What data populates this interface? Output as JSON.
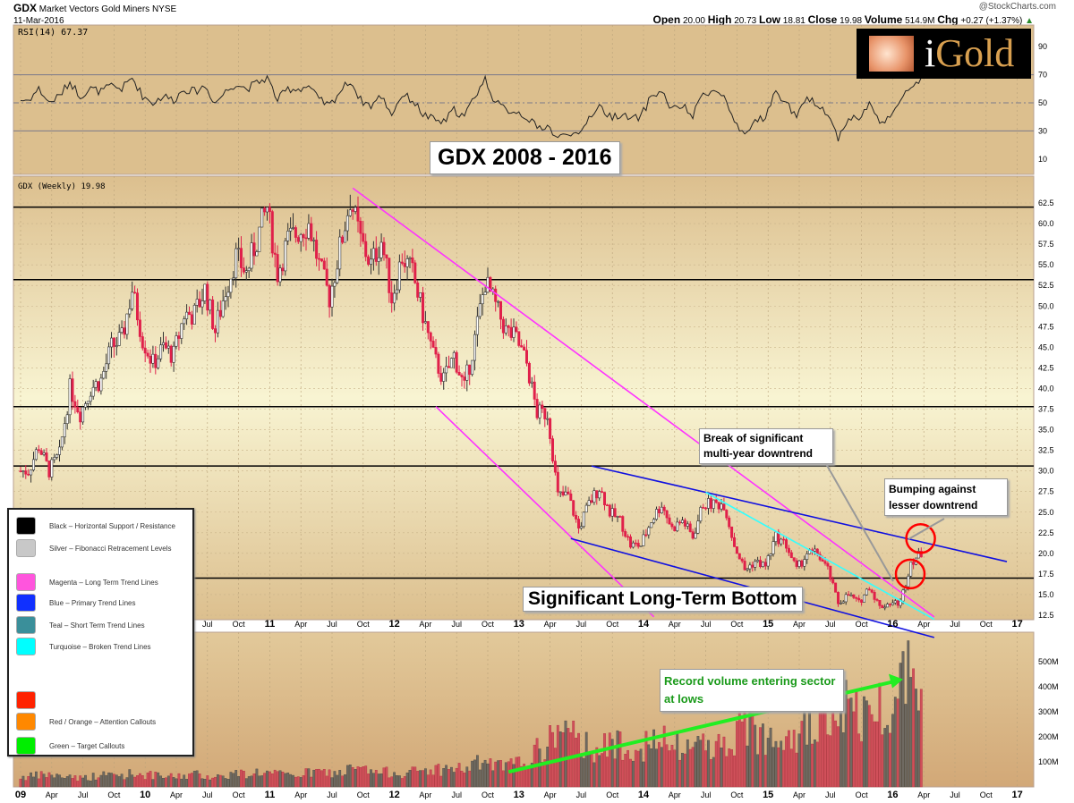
{
  "header": {
    "symbol": "GDX",
    "name": "Market Vectors Gold Miners",
    "exchange": "NYSE",
    "date": "11-Mar-2016",
    "copyright": "@StockCharts.com",
    "open_label": "Open",
    "open": "20.00",
    "high_label": "High",
    "high": "20.73",
    "low_label": "Low",
    "low": "18.81",
    "close_label": "Close",
    "close": "19.98",
    "volume_label": "Volume",
    "volume": "514.9M",
    "chg_label": "Chg",
    "chg": "+0.27 (+1.37%)"
  },
  "logo": {
    "text_i": "i",
    "text_gold": "Gold"
  },
  "rsi_label": "RSI(14) 67.37",
  "price_label": "GDX (Weekly) 19.98",
  "title_box": "GDX 2008 - 2016",
  "colors": {
    "up": "#333333",
    "down": "#e0204a",
    "magenta": "#ff33ff",
    "blue": "#1010e0",
    "turquoise": "#33ffff",
    "callout_red": "#ff0000",
    "arrow_green": "#22ee22"
  },
  "legend": [
    {
      "color": "#000000",
      "label": "Black – Horizontal Support / Resistance"
    },
    {
      "color": "#c8c8c8",
      "label": "Silver – Fibonacci Retracement Levels"
    },
    {
      "color": "#ff55dd",
      "label": "Magenta – Long Term Trend Lines"
    },
    {
      "color": "#1030ff",
      "label": "Blue – Primary Trend Lines"
    },
    {
      "color": "#3a8f9a",
      "label": "Teal – Short Term Trend Lines"
    },
    {
      "color": "#00ffff",
      "label": "Turquoise – Broken Trend Lines"
    },
    {
      "color": "#ff2200",
      "label": ""
    },
    {
      "color": "#ff8800",
      "label": "Red / Orange – Attention Callouts"
    },
    {
      "color": "#00ee00",
      "label": "Green – Target Callouts"
    }
  ],
  "annotations": {
    "break": "Break of significant multi-year downtrend",
    "bumping": "Bumping against lesser downtrend",
    "bottom": "Significant Long-Term Bottom",
    "volume": "Record volume entering sector at lows"
  },
  "chart_data": {
    "type": "candlestick",
    "scale": "linear",
    "grid": true,
    "x_ticks": [
      "09",
      "Apr",
      "Jul",
      "Oct",
      "10",
      "Apr",
      "Jul",
      "Oct",
      "11",
      "Apr",
      "Jul",
      "Oct",
      "12",
      "Apr",
      "Jul",
      "Oct",
      "13",
      "Apr",
      "Jul",
      "Oct",
      "14",
      "Apr",
      "Jul",
      "Oct",
      "15",
      "Apr",
      "Jul",
      "Oct",
      "16",
      "Apr",
      "Jul",
      "Oct",
      "17"
    ],
    "x_range": [
      "2009-01",
      "2017-03"
    ],
    "price_ylim": [
      11,
      65
    ],
    "price_ticks": [
      "12.5",
      "15.0",
      "17.5",
      "20.0",
      "22.5",
      "25.0",
      "27.5",
      "30.0",
      "32.5",
      "35.0",
      "37.5",
      "40.0",
      "42.5",
      "45.0",
      "47.5",
      "50.0",
      "52.5",
      "55.0",
      "57.5",
      "60.0",
      "62.5"
    ],
    "rsi_ticks": [
      "10",
      "30",
      "50",
      "70",
      "90"
    ],
    "volume_ticks": [
      "100M",
      "200M",
      "300M",
      "400M",
      "500M"
    ],
    "start": "2009-01",
    "close": [
      30,
      33,
      30,
      32,
      40,
      37,
      40,
      41,
      45,
      46,
      52,
      46,
      43,
      45,
      44,
      49,
      49,
      52,
      47,
      52,
      56,
      54,
      58,
      62,
      54,
      58,
      59,
      60,
      55,
      51,
      57,
      63,
      58,
      55,
      58,
      51,
      56,
      54,
      49,
      44,
      41,
      44,
      40,
      46,
      53,
      50,
      47,
      46,
      43,
      37,
      37,
      27,
      27,
      23,
      26,
      28,
      25,
      24,
      21,
      21,
      24,
      26,
      23,
      24,
      22,
      26,
      26,
      26,
      21,
      18,
      19,
      18.5,
      22,
      21,
      18,
      20,
      20,
      18,
      14,
      15,
      14,
      16,
      13.5,
      14,
      14,
      19,
      19.98
    ],
    "volume_m": [
      40,
      45,
      50,
      40,
      45,
      35,
      40,
      45,
      50,
      45,
      55,
      50,
      45,
      40,
      40,
      45,
      50,
      45,
      40,
      45,
      55,
      50,
      60,
      55,
      50,
      45,
      50,
      55,
      60,
      55,
      55,
      70,
      70,
      60,
      55,
      60,
      55,
      60,
      65,
      70,
      70,
      75,
      70,
      90,
      100,
      80,
      80,
      90,
      110,
      140,
      160,
      250,
      200,
      180,
      170,
      150,
      160,
      180,
      170,
      160,
      170,
      180,
      160,
      150,
      160,
      190,
      170,
      160,
      200,
      260,
      220,
      200,
      250,
      230,
      220,
      240,
      230,
      250,
      330,
      320,
      280,
      300,
      320,
      330,
      400,
      520,
      500
    ],
    "rsi": [
      52,
      60,
      50,
      55,
      65,
      55,
      60,
      58,
      62,
      60,
      68,
      55,
      50,
      55,
      52,
      60,
      58,
      62,
      50,
      58,
      64,
      60,
      64,
      68,
      52,
      60,
      60,
      62,
      52,
      48,
      58,
      66,
      52,
      48,
      55,
      42,
      56,
      52,
      42,
      38,
      36,
      45,
      40,
      55,
      67,
      50,
      45,
      44,
      40,
      32,
      34,
      24,
      30,
      25,
      40,
      48,
      40,
      42,
      38,
      40,
      55,
      58,
      45,
      48,
      40,
      58,
      58,
      55,
      35,
      25,
      38,
      40,
      58,
      50,
      40,
      52,
      50,
      42,
      25,
      40,
      38,
      50,
      35,
      42,
      50,
      62,
      67.37
    ],
    "horizontal_levels": [
      62.0,
      53.2,
      37.8,
      30.6,
      17.0
    ],
    "rsi_levels": [
      30,
      50,
      70
    ],
    "trend_lines": [
      {
        "color": "magenta",
        "from": [
          "2011-09",
          64.3
        ],
        "to": [
          "2016-05",
          12.3
        ]
      },
      {
        "color": "magenta",
        "from": [
          "2012-05",
          37.8
        ],
        "to": [
          "2014-02",
          12.3
        ]
      },
      {
        "color": "blue",
        "from": [
          "2013-08",
          30.6
        ],
        "to": [
          "2016-12",
          19.0
        ]
      },
      {
        "color": "blue",
        "from": [
          "2013-06",
          21.8
        ],
        "to": [
          "2016-05",
          9.8
        ]
      },
      {
        "color": "turquoise",
        "from": [
          "2014-07",
          27.4
        ],
        "to": [
          "2016-05",
          12.0
        ]
      }
    ],
    "callout_circles": [
      [
        "2016-03",
        21.8
      ],
      [
        "2016-02",
        17.5
      ]
    ],
    "volume_trend_arrow": {
      "from": [
        "2012-12",
        60
      ],
      "to": [
        "2016-02",
        430
      ]
    }
  }
}
